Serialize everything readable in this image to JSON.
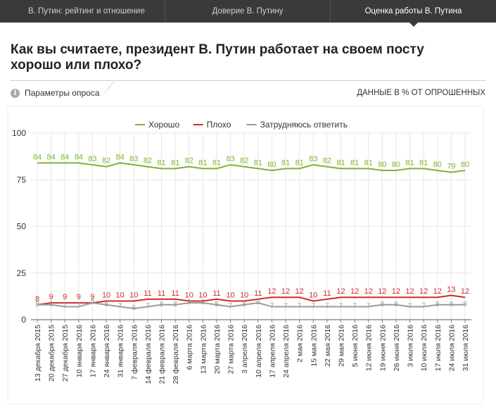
{
  "nav": {
    "tabs": [
      {
        "label": "В. Путин: рейтинг и отношение",
        "active": false
      },
      {
        "label": "Доверие В. Путину",
        "active": false
      },
      {
        "label": "Оценка работы В. Путина",
        "active": true
      }
    ]
  },
  "header": {
    "question": "Как вы считаете, президент В. Путин работает на своем посту хорошо или плохо?",
    "params_label": "Параметры опроса",
    "info_icon": "i",
    "units_label": "ДАННЫЕ В % ОТ ОПРОШЕННЫХ"
  },
  "colors": {
    "good": "#7db332",
    "bad": "#d42a2a",
    "hard": "#9b9b9b",
    "grid": "#e6e6e6",
    "axis": "#333333"
  },
  "chart_data": {
    "type": "line",
    "title": "",
    "xlabel": "",
    "ylabel": "",
    "ylim": [
      0,
      100
    ],
    "yticks": [
      0,
      25,
      50,
      75,
      100
    ],
    "legend_position": "top-center",
    "categories": [
      "13 декабря 2015",
      "20 декабря 2015",
      "27 декабря 2015",
      "10 января 2016",
      "17 января 2016",
      "24 января 2016",
      "31 января 2016",
      "7 февраля 2016",
      "14 февраля 2016",
      "21 февраля 2016",
      "28 февраля 2016",
      "6 марта 2016",
      "13 марта 2016",
      "20 марта 2016",
      "27 марта 2016",
      "3 апреля 2016",
      "10 апреля 2016",
      "17 апреля 2016",
      "24 апреля 2016",
      "2 мая 2016",
      "15 мая 2016",
      "22 мая 2016",
      "29 мая 2016",
      "5 июня 2016",
      "12 июня 2016",
      "19 июня 2016",
      "26 июня 2016",
      "3 июля 2016",
      "10 июля 2016",
      "17 июля 2016",
      "24 июля 2016",
      "31 июля 2016"
    ],
    "series": [
      {
        "key": "good",
        "name": "Хорошо",
        "values": [
          84,
          84,
          84,
          84,
          83,
          82,
          84,
          83,
          82,
          81,
          81,
          82,
          81,
          81,
          83,
          82,
          81,
          80,
          81,
          81,
          83,
          82,
          81,
          81,
          81,
          80,
          80,
          81,
          81,
          80,
          79,
          80
        ]
      },
      {
        "key": "bad",
        "name": "Плохо",
        "values": [
          8,
          9,
          9,
          9,
          9,
          10,
          10,
          10,
          11,
          11,
          11,
          10,
          10,
          11,
          10,
          10,
          11,
          12,
          12,
          12,
          10,
          11,
          12,
          12,
          12,
          12,
          12,
          12,
          12,
          12,
          13,
          12
        ]
      },
      {
        "key": "hard",
        "name": "Затрудняюсь ответить",
        "values": [
          8,
          8,
          7,
          7,
          9,
          8,
          7,
          6,
          7,
          8,
          8,
          9,
          9,
          8,
          7,
          8,
          9,
          7,
          7,
          7,
          7,
          7,
          7,
          7,
          7,
          8,
          8,
          7,
          7,
          8,
          8,
          8
        ]
      }
    ]
  }
}
